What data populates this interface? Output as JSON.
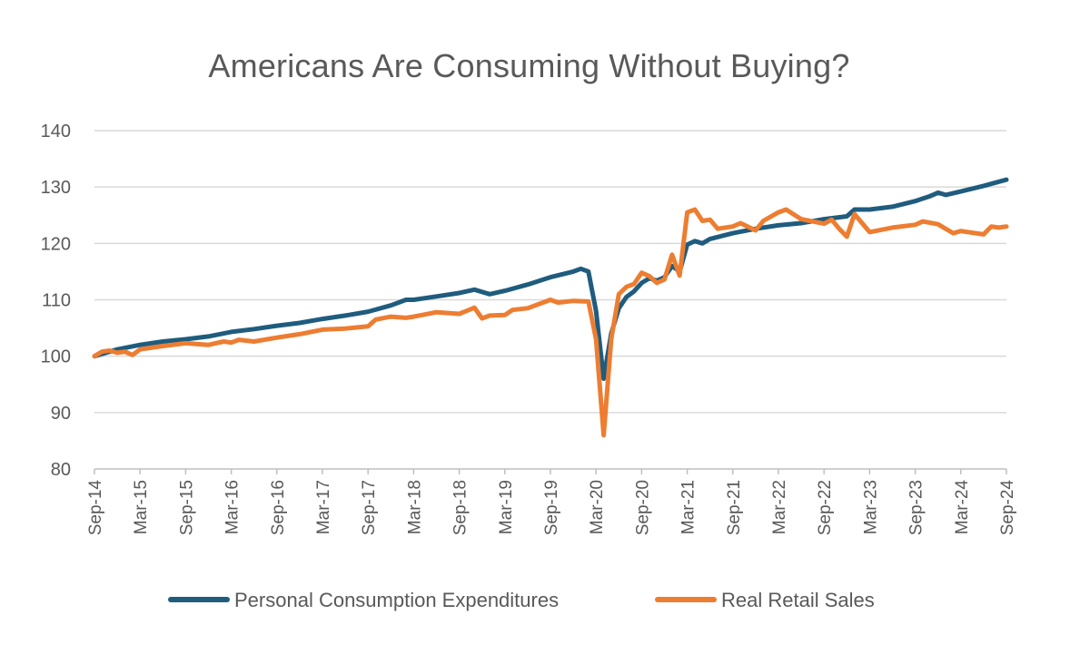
{
  "chart_data": {
    "type": "line",
    "title": "Americans Are Consuming Without Buying?",
    "xlabel": "",
    "ylabel": "",
    "ylim": [
      80,
      140
    ],
    "yticks": [
      80,
      90,
      100,
      110,
      120,
      130,
      140
    ],
    "x_tick_labels": [
      "Sep-14",
      "Mar-15",
      "Sep-15",
      "Mar-16",
      "Sep-16",
      "Mar-17",
      "Sep-17",
      "Mar-18",
      "Sep-18",
      "Mar-19",
      "Sep-19",
      "Mar-20",
      "Sep-20",
      "Mar-21",
      "Sep-21",
      "Mar-22",
      "Sep-22",
      "Mar-23",
      "Sep-23",
      "Mar-24",
      "Sep-24"
    ],
    "grid": true,
    "legend_position": "bottom",
    "series": [
      {
        "name": "Personal Consumption Expenditures",
        "color": "#1f5c7e",
        "points": [
          [
            "Sep-14",
            100.0
          ],
          [
            "Dec-14",
            101.2
          ],
          [
            "Mar-15",
            102.0
          ],
          [
            "Jun-15",
            102.6
          ],
          [
            "Sep-15",
            103.0
          ],
          [
            "Dec-15",
            103.5
          ],
          [
            "Mar-16",
            104.3
          ],
          [
            "Jun-16",
            104.8
          ],
          [
            "Sep-16",
            105.4
          ],
          [
            "Dec-16",
            105.9
          ],
          [
            "Mar-17",
            106.6
          ],
          [
            "Jun-17",
            107.2
          ],
          [
            "Sep-17",
            107.9
          ],
          [
            "Dec-17",
            109.0
          ],
          [
            "Feb-18",
            110.0
          ],
          [
            "Mar-18",
            110.0
          ],
          [
            "Jun-18",
            110.6
          ],
          [
            "Sep-18",
            111.2
          ],
          [
            "Nov-18",
            111.8
          ],
          [
            "Jan-19",
            111.0
          ],
          [
            "Mar-19",
            111.6
          ],
          [
            "Jun-19",
            112.7
          ],
          [
            "Sep-19",
            114.0
          ],
          [
            "Dec-19",
            115.0
          ],
          [
            "Jan-20",
            115.5
          ],
          [
            "Feb-20",
            115.0
          ],
          [
            "Mar-20",
            108.0
          ],
          [
            "Apr-20",
            96.0
          ],
          [
            "May-20",
            104.0
          ],
          [
            "Jun-20",
            108.5
          ],
          [
            "Jul-20",
            110.5
          ],
          [
            "Aug-20",
            111.5
          ],
          [
            "Sep-20",
            113.0
          ],
          [
            "Oct-20",
            113.8
          ],
          [
            "Nov-20",
            113.4
          ],
          [
            "Dec-20",
            114.0
          ],
          [
            "Jan-21",
            116.0
          ],
          [
            "Feb-21",
            115.0
          ],
          [
            "Mar-21",
            119.8
          ],
          [
            "Apr-21",
            120.4
          ],
          [
            "May-21",
            120.0
          ],
          [
            "Jun-21",
            120.8
          ],
          [
            "Sep-21",
            121.8
          ],
          [
            "Dec-21",
            122.6
          ],
          [
            "Mar-22",
            123.2
          ],
          [
            "Jun-22",
            123.6
          ],
          [
            "Sep-22",
            124.3
          ],
          [
            "Dec-22",
            124.8
          ],
          [
            "Jan-23",
            126.0
          ],
          [
            "Mar-23",
            126.0
          ],
          [
            "Jun-23",
            126.5
          ],
          [
            "Sep-23",
            127.5
          ],
          [
            "Nov-23",
            128.4
          ],
          [
            "Dec-23",
            129.0
          ],
          [
            "Jan-24",
            128.6
          ],
          [
            "Mar-24",
            129.2
          ],
          [
            "Jun-24",
            130.2
          ],
          [
            "Sep-24",
            131.3
          ]
        ]
      },
      {
        "name": "Real Retail Sales",
        "color": "#ed7d31",
        "points": [
          [
            "Sep-14",
            100.0
          ],
          [
            "Oct-14",
            100.8
          ],
          [
            "Nov-14",
            101.0
          ],
          [
            "Dec-14",
            100.6
          ],
          [
            "Jan-15",
            100.8
          ],
          [
            "Feb-15",
            100.2
          ],
          [
            "Mar-15",
            101.2
          ],
          [
            "Jun-15",
            101.8
          ],
          [
            "Sep-15",
            102.3
          ],
          [
            "Dec-15",
            102.0
          ],
          [
            "Feb-16",
            102.6
          ],
          [
            "Mar-16",
            102.4
          ],
          [
            "Apr-16",
            102.9
          ],
          [
            "Jun-16",
            102.6
          ],
          [
            "Sep-16",
            103.3
          ],
          [
            "Dec-16",
            103.9
          ],
          [
            "Mar-17",
            104.7
          ],
          [
            "Jun-17",
            104.9
          ],
          [
            "Sep-17",
            105.3
          ],
          [
            "Oct-17",
            106.5
          ],
          [
            "Dec-17",
            107.0
          ],
          [
            "Feb-18",
            106.8
          ],
          [
            "Mar-18",
            107.0
          ],
          [
            "Jun-18",
            107.8
          ],
          [
            "Sep-18",
            107.5
          ],
          [
            "Nov-18",
            108.6
          ],
          [
            "Dec-18",
            106.7
          ],
          [
            "Jan-19",
            107.2
          ],
          [
            "Mar-19",
            107.3
          ],
          [
            "Apr-19",
            108.2
          ],
          [
            "Jun-19",
            108.5
          ],
          [
            "Sep-19",
            110.0
          ],
          [
            "Oct-19",
            109.5
          ],
          [
            "Dec-19",
            109.8
          ],
          [
            "Feb-20",
            109.7
          ],
          [
            "Mar-20",
            103.0
          ],
          [
            "Apr-20",
            86.0
          ],
          [
            "May-20",
            103.0
          ],
          [
            "Jun-20",
            111.0
          ],
          [
            "Jul-20",
            112.3
          ],
          [
            "Aug-20",
            112.8
          ],
          [
            "Sep-20",
            114.8
          ],
          [
            "Oct-20",
            114.2
          ],
          [
            "Nov-20",
            113.0
          ],
          [
            "Dec-20",
            113.6
          ],
          [
            "Jan-21",
            118.0
          ],
          [
            "Feb-21",
            114.3
          ],
          [
            "Mar-21",
            125.5
          ],
          [
            "Apr-21",
            126.0
          ],
          [
            "May-21",
            124.0
          ],
          [
            "Jun-21",
            124.2
          ],
          [
            "Jul-21",
            122.6
          ],
          [
            "Sep-21",
            123.0
          ],
          [
            "Oct-21",
            123.6
          ],
          [
            "Dec-21",
            122.3
          ],
          [
            "Jan-22",
            124.0
          ],
          [
            "Mar-22",
            125.5
          ],
          [
            "Apr-22",
            126.0
          ],
          [
            "Jun-22",
            124.3
          ],
          [
            "Sep-22",
            123.5
          ],
          [
            "Oct-22",
            124.2
          ],
          [
            "Nov-22",
            122.6
          ],
          [
            "Dec-22",
            121.2
          ],
          [
            "Jan-23",
            125.2
          ],
          [
            "Mar-23",
            122.0
          ],
          [
            "Jun-23",
            122.8
          ],
          [
            "Sep-23",
            123.3
          ],
          [
            "Oct-23",
            123.9
          ],
          [
            "Dec-23",
            123.4
          ],
          [
            "Feb-24",
            121.8
          ],
          [
            "Mar-24",
            122.2
          ],
          [
            "Jun-24",
            121.6
          ],
          [
            "Jul-24",
            123.0
          ],
          [
            "Aug-24",
            122.8
          ],
          [
            "Sep-24",
            123.0
          ]
        ]
      }
    ]
  }
}
